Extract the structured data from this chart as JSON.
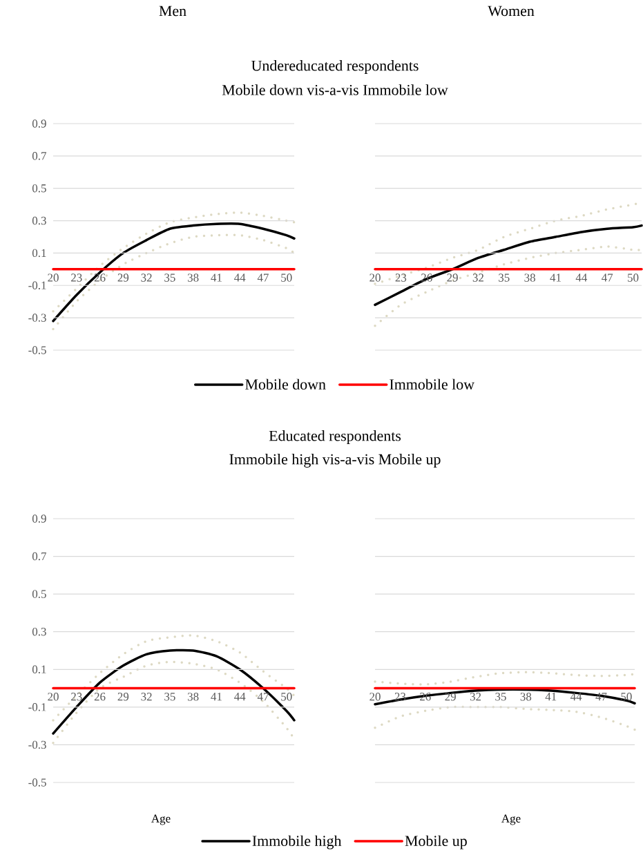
{
  "chart_data": [
    {
      "type": "line",
      "title": "Men",
      "annotations": [
        "Undereducated respondents",
        "Mobile down vis-a-vis Immobile low"
      ],
      "x": [
        20,
        23,
        26,
        29,
        32,
        35,
        38,
        41,
        44,
        47,
        50,
        51
      ],
      "xlim": [
        20,
        51
      ],
      "xticks": [
        20,
        23,
        26,
        29,
        32,
        35,
        38,
        41,
        44,
        47,
        50
      ],
      "ylim": [
        -0.5,
        0.9
      ],
      "yticks": [
        -0.5,
        -0.3,
        -0.1,
        0.1,
        0.3,
        0.5,
        0.7,
        0.9
      ],
      "grid": "y",
      "legend": "bottom",
      "series": [
        {
          "name": "Mobile down",
          "color": "#000000",
          "values": [
            -0.32,
            -0.16,
            -0.02,
            0.1,
            0.18,
            0.25,
            0.27,
            0.28,
            0.28,
            0.25,
            0.21,
            0.19
          ]
        },
        {
          "color": "#ddd9c3",
          "line_style": "dotted",
          "values": [
            -0.26,
            -0.12,
            0.02,
            0.13,
            0.22,
            0.29,
            0.32,
            0.34,
            0.35,
            0.33,
            0.3,
            0.29
          ]
        },
        {
          "color": "#ddd9c3",
          "line_style": "dotted",
          "values": [
            -0.37,
            -0.2,
            -0.07,
            0.03,
            0.1,
            0.16,
            0.2,
            0.21,
            0.21,
            0.18,
            0.13,
            0.1
          ]
        },
        {
          "name": "Immobile low",
          "color": "#ff0000",
          "values": [
            0,
            0,
            0,
            0,
            0,
            0,
            0,
            0,
            0,
            0,
            0,
            0
          ]
        }
      ]
    },
    {
      "type": "line",
      "title": "Women",
      "x": [
        20,
        23,
        26,
        29,
        32,
        35,
        38,
        41,
        44,
        47,
        50,
        51
      ],
      "xlim": [
        20,
        51
      ],
      "xticks": [
        20,
        23,
        26,
        29,
        32,
        35,
        38,
        41,
        44,
        47,
        50
      ],
      "ylim": [
        -0.5,
        0.9
      ],
      "yticks": [
        -0.5,
        -0.3,
        -0.1,
        0.1,
        0.3,
        0.5,
        0.7,
        0.9
      ],
      "grid": "y",
      "tick_labels": "x",
      "series": [
        {
          "color": "#000000",
          "values": [
            -0.22,
            -0.14,
            -0.06,
            0.0,
            0.07,
            0.12,
            0.17,
            0.2,
            0.23,
            0.25,
            0.26,
            0.27
          ]
        },
        {
          "color": "#ddd9c3",
          "line_style": "dotted",
          "values": [
            -0.09,
            -0.04,
            0.01,
            0.07,
            0.12,
            0.2,
            0.25,
            0.3,
            0.33,
            0.37,
            0.4,
            0.41
          ]
        },
        {
          "color": "#ddd9c3",
          "line_style": "dotted",
          "values": [
            -0.35,
            -0.22,
            -0.14,
            -0.07,
            -0.02,
            0.03,
            0.07,
            0.1,
            0.12,
            0.14,
            0.12,
            0.12
          ]
        },
        {
          "color": "#ff0000",
          "values": [
            0,
            0,
            0,
            0,
            0,
            0,
            0,
            0,
            0,
            0,
            0,
            0
          ]
        }
      ]
    },
    {
      "type": "line",
      "xlabel": "Age",
      "annotations": [
        "Educated respondents",
        "Immobile high vis-a-vis Mobile up"
      ],
      "x": [
        20,
        23,
        26,
        29,
        32,
        35,
        38,
        41,
        44,
        47,
        50,
        51
      ],
      "xlim": [
        20,
        51
      ],
      "xticks": [
        20,
        23,
        26,
        29,
        32,
        35,
        38,
        41,
        44,
        47,
        50
      ],
      "ylim": [
        -0.5,
        0.9
      ],
      "yticks": [
        -0.5,
        -0.3,
        -0.1,
        0.1,
        0.3,
        0.5,
        0.7,
        0.9
      ],
      "grid": "y",
      "legend": "bottom",
      "series": [
        {
          "name": "Immobile high",
          "color": "#000000",
          "values": [
            -0.24,
            -0.1,
            0.03,
            0.12,
            0.18,
            0.2,
            0.2,
            0.17,
            0.1,
            0.0,
            -0.12,
            -0.17
          ]
        },
        {
          "color": "#ddd9c3",
          "line_style": "dotted",
          "values": [
            -0.17,
            -0.04,
            0.08,
            0.18,
            0.25,
            0.27,
            0.28,
            0.25,
            0.19,
            0.09,
            0.0,
            -0.04
          ]
        },
        {
          "color": "#ddd9c3",
          "line_style": "dotted",
          "values": [
            -0.29,
            -0.13,
            0.0,
            0.06,
            0.12,
            0.14,
            0.13,
            0.1,
            0.03,
            -0.07,
            -0.21,
            -0.27
          ]
        },
        {
          "name": "Mobile up",
          "color": "#ff0000",
          "values": [
            0,
            0,
            0,
            0,
            0,
            0,
            0,
            0,
            0,
            0,
            0,
            0
          ]
        }
      ]
    },
    {
      "type": "line",
      "xlabel": "Age",
      "x": [
        20,
        23,
        26,
        29,
        32,
        35,
        38,
        41,
        44,
        47,
        50,
        51
      ],
      "xlim": [
        20,
        51
      ],
      "xticks": [
        20,
        23,
        26,
        29,
        32,
        35,
        38,
        41,
        44,
        47,
        50
      ],
      "ylim": [
        -0.5,
        0.9
      ],
      "yticks": [
        -0.5,
        -0.3,
        -0.1,
        0.1,
        0.3,
        0.5,
        0.7,
        0.9
      ],
      "grid": "y",
      "tick_labels": "x",
      "series": [
        {
          "color": "#000000",
          "values": [
            -0.085,
            -0.06,
            -0.04,
            -0.025,
            -0.013,
            -0.007,
            -0.007,
            -0.013,
            -0.025,
            -0.04,
            -0.065,
            -0.08
          ]
        },
        {
          "color": "#ddd9c3",
          "line_style": "dotted",
          "values": [
            0.035,
            0.025,
            0.02,
            0.035,
            0.06,
            0.08,
            0.085,
            0.08,
            0.07,
            0.065,
            0.07,
            0.075
          ]
        },
        {
          "color": "#ddd9c3",
          "line_style": "dotted",
          "values": [
            -0.21,
            -0.15,
            -0.12,
            -0.1,
            -0.1,
            -0.1,
            -0.11,
            -0.115,
            -0.125,
            -0.155,
            -0.2,
            -0.22
          ]
        },
        {
          "color": "#ff0000",
          "values": [
            0,
            0,
            0,
            0,
            0,
            0,
            0,
            0,
            0,
            0,
            0,
            0
          ]
        }
      ]
    }
  ]
}
